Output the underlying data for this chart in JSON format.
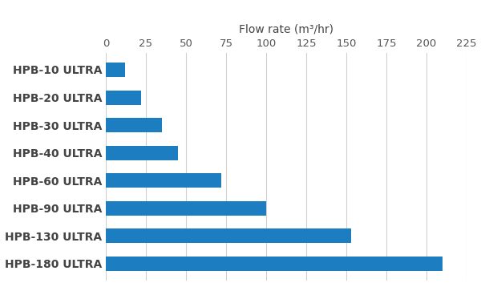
{
  "categories": [
    "HPB-10 ULTRA",
    "HPB-20 ULTRA",
    "HPB-30 ULTRA",
    "HPB-40 ULTRA",
    "HPB-60 ULTRA",
    "HPB-90 ULTRA",
    "HPB-130 ULTRA",
    "HPB-180 ULTRA"
  ],
  "bar_values": [
    12,
    22,
    35,
    45,
    72,
    100,
    153,
    210
  ],
  "bar_color": "#1c7dc0",
  "xlabel": "Flow rate (m³/hr)",
  "xlim": [
    0,
    225
  ],
  "xticks": [
    0,
    25,
    50,
    75,
    100,
    125,
    150,
    175,
    200,
    225
  ],
  "background_color": "#ffffff",
  "grid_color": "#d0d0d0",
  "label_fontsize": 10,
  "tick_fontsize": 9.5,
  "bar_height": 0.52
}
